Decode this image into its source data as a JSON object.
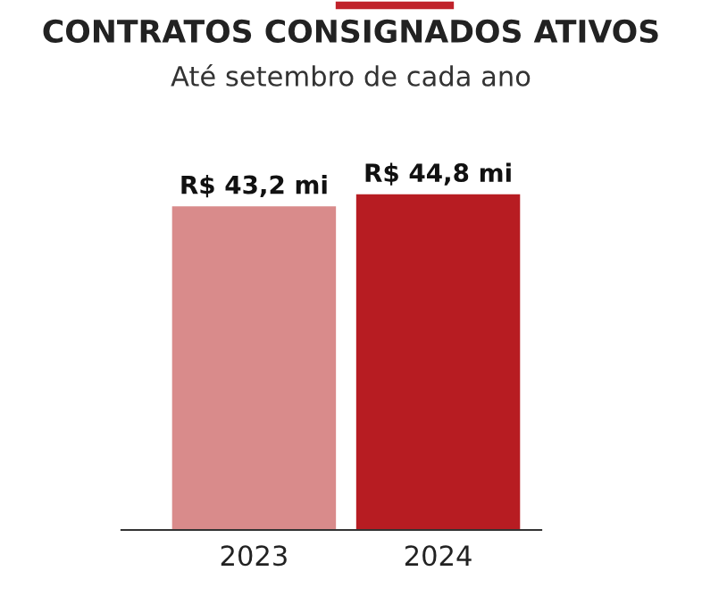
{
  "chart_data": {
    "type": "bar",
    "title": "CONTRATOS CONSIGNADOS ATIVOS",
    "subtitle": "Até setembro de cada ano",
    "categories": [
      "2023",
      "2024"
    ],
    "values": [
      43.2,
      44.8
    ],
    "colors": [
      "#d98b8b",
      "#b71c22"
    ],
    "value_labels": [
      "R$ 43,2 mi",
      "R$ 44,8 mi"
    ],
    "grid": false,
    "legend": false
  }
}
